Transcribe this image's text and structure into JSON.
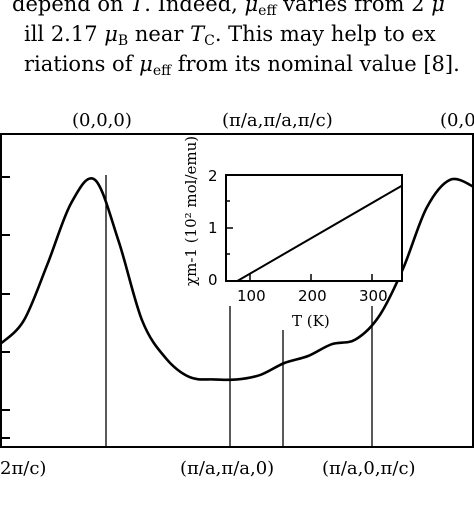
{
  "paragraph": {
    "line1": {
      "pre": "depend on ",
      "var": "T",
      "mid": ". Indeed, ",
      "mu": "μ",
      "sub": "eff",
      "post": " varies from 2 ",
      "tail": "μ"
    },
    "line2": {
      "pre": "ill 2.17 ",
      "mu": "μ",
      "sub": "B",
      "mid": " near ",
      "var": "T",
      "sub2": "C",
      "post": ". This may help to ex"
    },
    "line3": {
      "pre": "riations of ",
      "mu": "μ",
      "sub": "eff",
      "post": " from its nominal value [8]."
    }
  },
  "chart_data": [
    {
      "type": "line",
      "top_labels": [
        "(0,0,0)",
        "(π/a,π/a,π/c)",
        "(0,0"
      ],
      "bottom_labels": [
        "2π/c)",
        "(π/a,π/a,0)",
        "(π/a,0,π/c)"
      ],
      "series": [
        {
          "x": [
            0,
            0.05,
            0.1,
            0.15,
            0.2,
            0.25,
            0.3,
            0.35,
            0.4,
            0.45,
            0.5,
            0.55,
            0.6,
            0.65,
            0.7,
            0.75,
            0.8,
            0.85,
            0.9,
            0.95,
            1.0
          ],
          "values": [
            0.72,
            0.62,
            0.38,
            0.12,
            0.02,
            0.28,
            0.62,
            0.78,
            0.86,
            0.87,
            0.87,
            0.85,
            0.8,
            0.77,
            0.72,
            0.7,
            0.6,
            0.4,
            0.14,
            0.02,
            0.05
          ]
        }
      ]
    },
    {
      "type": "line",
      "xlabel": "T (K)",
      "ylabel": "χm-1 (10² mol/emu)",
      "xlim": [
        40,
        350
      ],
      "ylim": [
        0,
        2
      ],
      "x_ticks": [
        "100",
        "200",
        "300"
      ],
      "y_ticks": [
        "0",
        "1",
        "2"
      ],
      "series": [
        {
          "x": [
            60,
            350
          ],
          "values": [
            0,
            1.8
          ]
        }
      ]
    }
  ]
}
